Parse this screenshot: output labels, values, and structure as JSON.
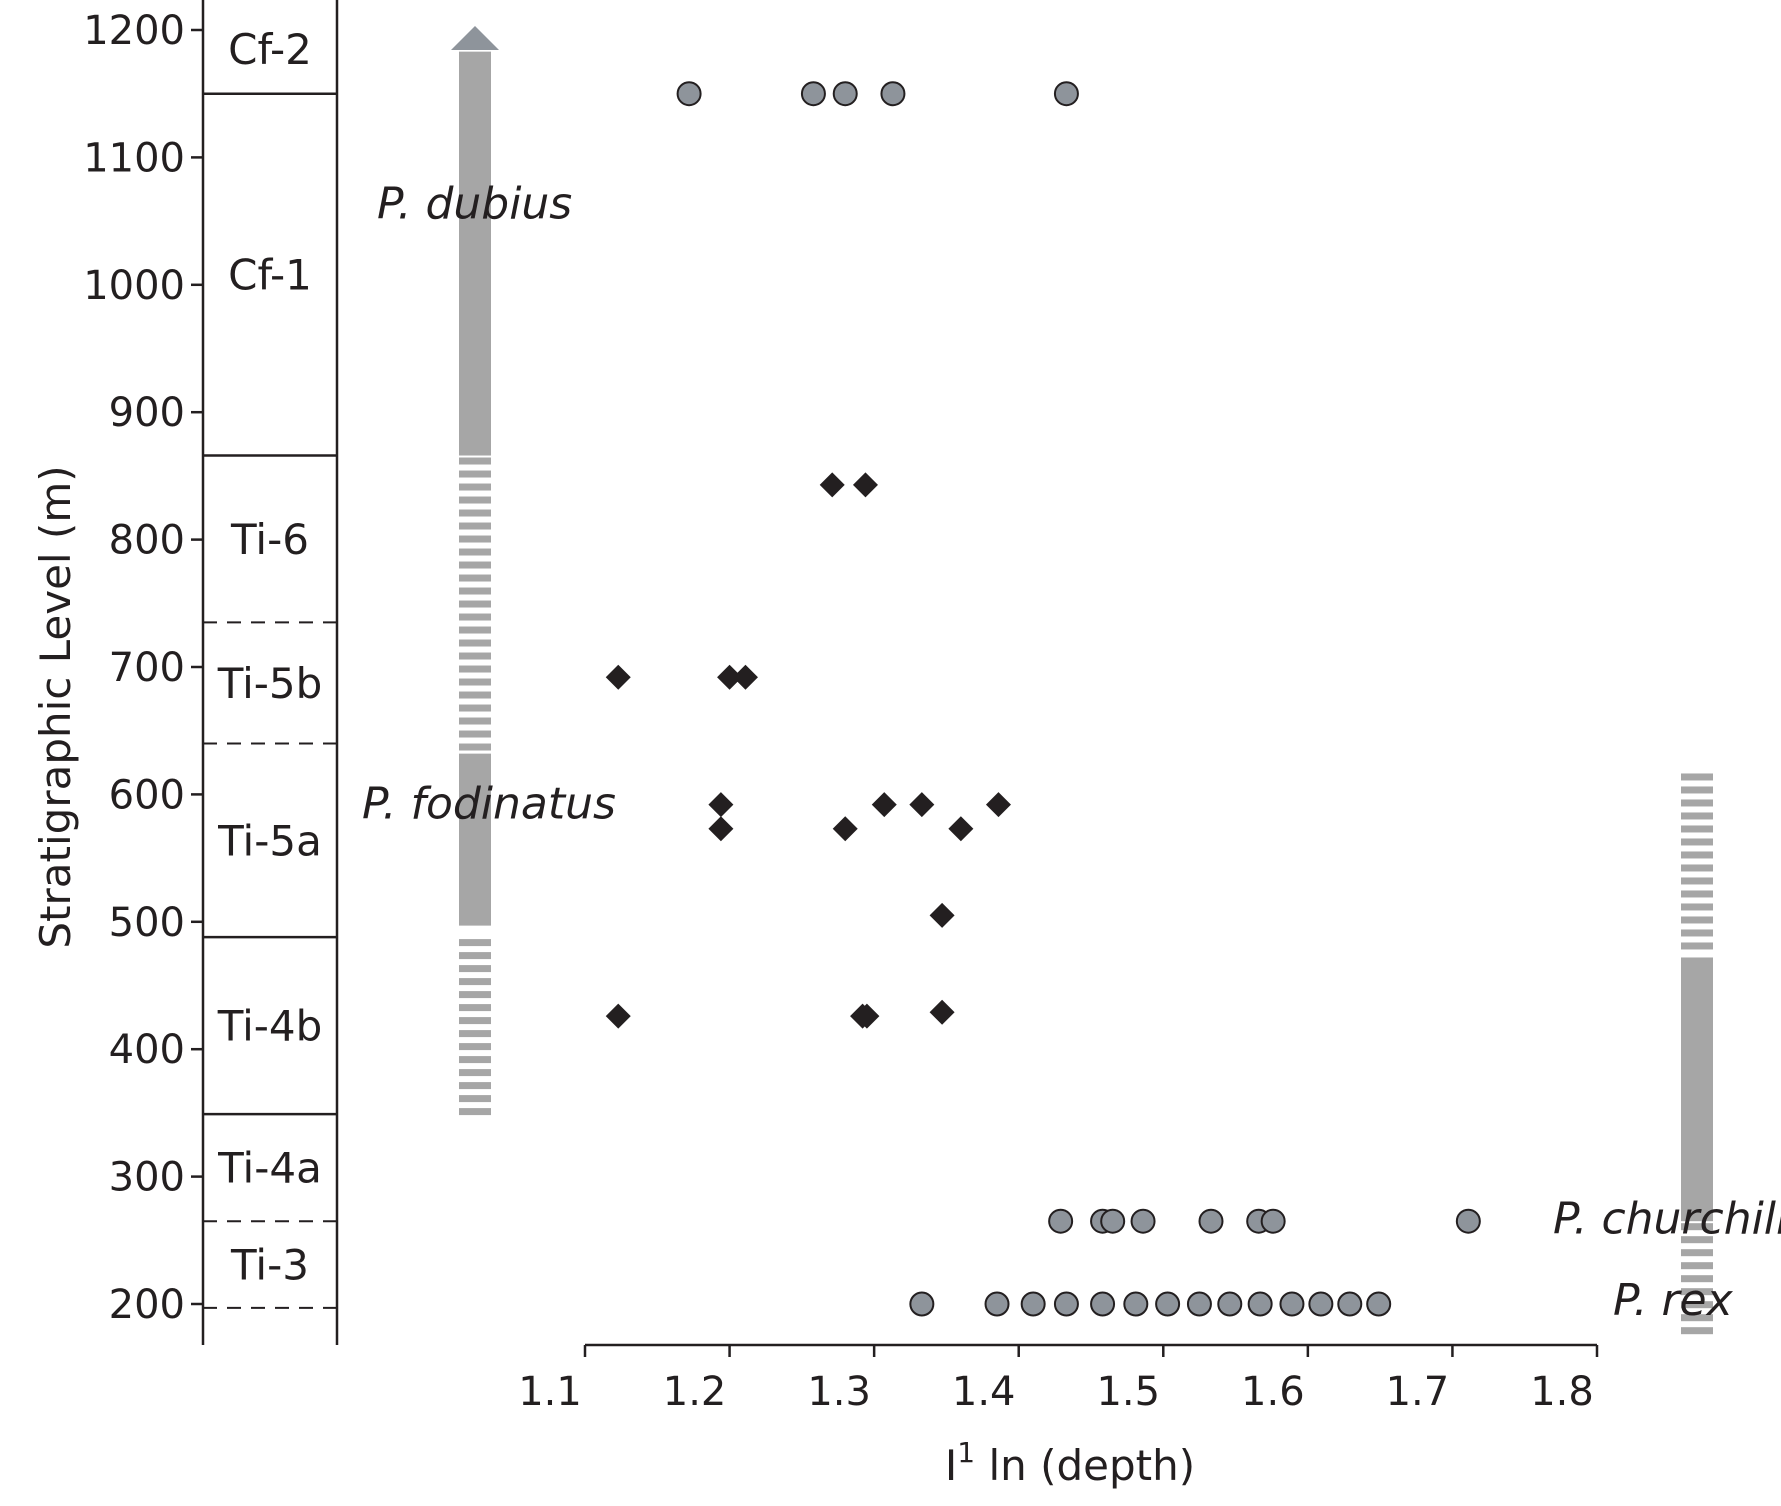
{
  "chart_data": {
    "type": "scatter",
    "xlabel": "I¹ ln (depth)",
    "xlabel_base": "I",
    "xlabel_sup": "1",
    "xlabel_rest": " ln (depth)",
    "ylabel": "Stratigraphic Level (m)",
    "xlim": [
      1.1,
      1.8
    ],
    "ylim": [
      170,
      1220
    ],
    "x_ticks": [
      1.1,
      1.2,
      1.3,
      1.4,
      1.5,
      1.6,
      1.7,
      1.8
    ],
    "x_tick_labels": [
      "1.1",
      "1.2",
      "1.3",
      "1.4",
      "1.5",
      "1.6",
      "1.7",
      "1.8"
    ],
    "y_ticks": [
      200,
      300,
      400,
      500,
      600,
      700,
      800,
      900,
      1000,
      1100,
      1200
    ],
    "y_tick_labels": [
      "200",
      "300",
      "400",
      "500",
      "600",
      "700",
      "800",
      "900",
      "1000",
      "1100",
      "1200"
    ],
    "colors": {
      "circle_fill": "#8e949b",
      "diamond_fill": "#231f20",
      "range_bar": "#a6a6a6",
      "arrow": "#8e949b",
      "ink": "#231f20"
    },
    "stages": [
      {
        "label": "Cf-2",
        "bottom": 1150,
        "top": 1220,
        "bottom_boundary": "solid"
      },
      {
        "label": "Cf-1",
        "bottom": 866,
        "top": 1150,
        "bottom_boundary": "solid"
      },
      {
        "label": "Ti-6",
        "bottom": 735,
        "top": 866,
        "bottom_boundary": "dashed"
      },
      {
        "label": "Ti-5b",
        "bottom": 640,
        "top": 735,
        "bottom_boundary": "dashed"
      },
      {
        "label": "Ti-5a",
        "bottom": 488,
        "top": 640,
        "bottom_boundary": "solid"
      },
      {
        "label": "Ti-4b",
        "bottom": 349,
        "top": 488,
        "bottom_boundary": "solid"
      },
      {
        "label": "Ti-4a",
        "bottom": 265,
        "top": 349,
        "bottom_boundary": "dashed"
      },
      {
        "label": "Ti-3",
        "bottom": 197,
        "top": 265,
        "bottom_boundary": "dashed"
      }
    ],
    "series": [
      {
        "marker": "circle",
        "points": [
          [
            1.172,
            1150
          ],
          [
            1.258,
            1150
          ],
          [
            1.28,
            1150
          ],
          [
            1.313,
            1150
          ],
          [
            1.433,
            1150
          ]
        ]
      },
      {
        "marker": "diamond",
        "points": [
          [
            1.271,
            843
          ],
          [
            1.294,
            843
          ],
          [
            1.123,
            692
          ],
          [
            1.2,
            692
          ],
          [
            1.211,
            692
          ],
          [
            1.194,
            592
          ],
          [
            1.307,
            592
          ],
          [
            1.333,
            592
          ],
          [
            1.386,
            592
          ],
          [
            1.194,
            573
          ],
          [
            1.28,
            573
          ],
          [
            1.36,
            573
          ],
          [
            1.347,
            505
          ],
          [
            1.123,
            426
          ],
          [
            1.292,
            426
          ],
          [
            1.295,
            426
          ],
          [
            1.347,
            429
          ]
        ]
      },
      {
        "marker": "circle",
        "points": [
          [
            1.429,
            265
          ],
          [
            1.458,
            265
          ],
          [
            1.465,
            265
          ],
          [
            1.486,
            265
          ],
          [
            1.533,
            265
          ],
          [
            1.566,
            265
          ],
          [
            1.576,
            265
          ],
          [
            1.711,
            265
          ]
        ]
      },
      {
        "marker": "circle",
        "points": [
          [
            1.333,
            200
          ],
          [
            1.385,
            200
          ],
          [
            1.41,
            200
          ],
          [
            1.433,
            200
          ],
          [
            1.458,
            200
          ],
          [
            1.481,
            200
          ],
          [
            1.503,
            200
          ],
          [
            1.525,
            200
          ],
          [
            1.546,
            200
          ],
          [
            1.567,
            200
          ],
          [
            1.589,
            200
          ],
          [
            1.609,
            200
          ],
          [
            1.629,
            200
          ],
          [
            1.649,
            200
          ]
        ]
      }
    ],
    "range_bars": [
      {
        "column": "left",
        "segments": [
          {
            "from": 342,
            "to": 488,
            "style": "dashed"
          },
          {
            "from": 497,
            "to": 632,
            "style": "solid"
          },
          {
            "from": 632,
            "to": 866,
            "style": "dashed"
          },
          {
            "from": 866,
            "to": 1183,
            "style": "solid"
          }
        ],
        "arrow_top": 1200
      },
      {
        "column": "right",
        "segments": [
          {
            "from": 172,
            "to": 265,
            "style": "dashed"
          },
          {
            "from": 265,
            "to": 472,
            "style": "solid"
          },
          {
            "from": 472,
            "to": 618,
            "style": "dashed"
          }
        ]
      }
    ],
    "taxon_labels": [
      {
        "text": "P. dubius",
        "y": 1064,
        "column": "left"
      },
      {
        "text": "P. fodinatus",
        "y": 593,
        "column": "left"
      },
      {
        "text": "P. churchilli",
        "y": 267,
        "column": "right"
      },
      {
        "text": "P. rex",
        "y": 203,
        "column": "right"
      }
    ]
  }
}
